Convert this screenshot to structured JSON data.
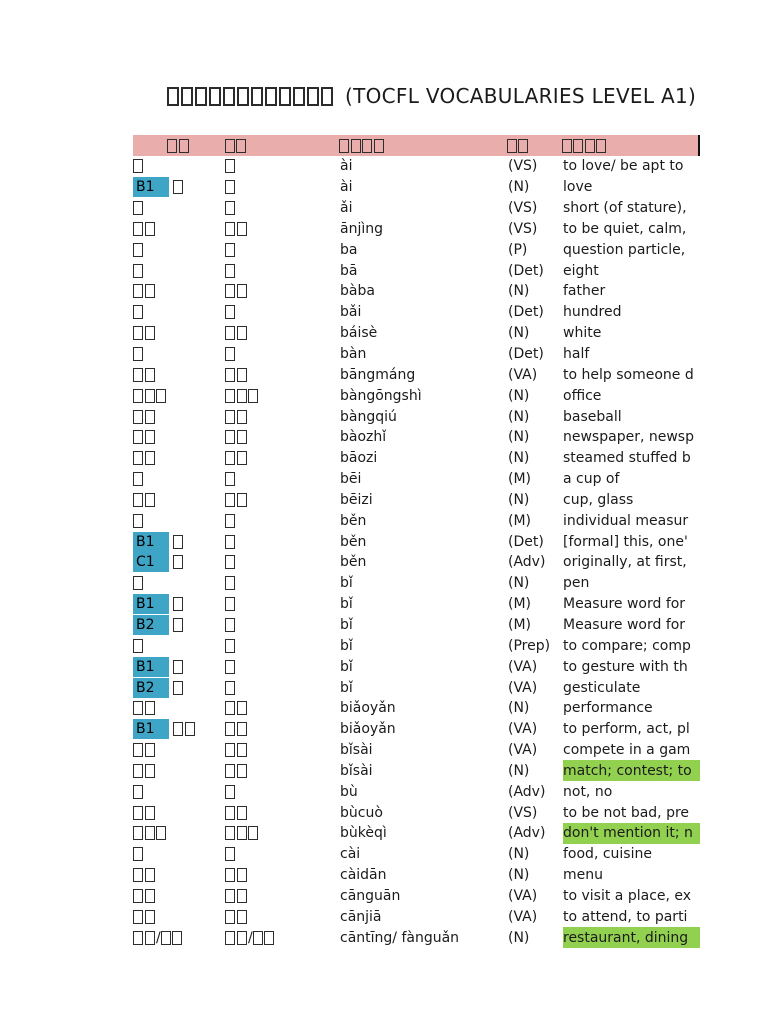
{
  "page": {
    "title_boxes": "############",
    "title_latin": "(TOCFL VOCABULARIES LEVEL A1)"
  },
  "colors": {
    "header_bg": "#E9AEAC",
    "level_badge_bg": "#3EA5C6",
    "highlight_bg": "#92D050"
  },
  "table": {
    "header": {
      "word_boxes": "##",
      "simplified_boxes": "##",
      "pinyin_boxes": "####",
      "pos_boxes": "##",
      "english_boxes": "####"
    },
    "rows": [
      {
        "level": "",
        "word_boxes": "#",
        "simp_boxes": "#",
        "pinyin": "ài",
        "pos": "(VS)",
        "english": "to love/ be apt to",
        "highlight": false
      },
      {
        "level": "B1",
        "word_boxes": "#",
        "simp_boxes": "#",
        "pinyin": "ài",
        "pos": "(N)",
        "english": "love",
        "highlight": false
      },
      {
        "level": "",
        "word_boxes": "#",
        "simp_boxes": "#",
        "pinyin": "ǎi",
        "pos": "(VS)",
        "english": "short (of stature),",
        "highlight": false
      },
      {
        "level": "",
        "word_boxes": "##",
        "simp_boxes": "##",
        "pinyin": "ānjìng",
        "pos": "(VS)",
        "english": "to be quiet, calm,",
        "highlight": false
      },
      {
        "level": "",
        "word_boxes": "#",
        "simp_boxes": "#",
        "pinyin": "ba",
        "pos": "(P)",
        "english": "question particle,",
        "highlight": false
      },
      {
        "level": "",
        "word_boxes": "#",
        "simp_boxes": "#",
        "pinyin": "bā",
        "pos": "(Det)",
        "english": "eight",
        "highlight": false
      },
      {
        "level": "",
        "word_boxes": "##",
        "simp_boxes": "##",
        "pinyin": "bàba",
        "pos": "(N)",
        "english": "father",
        "highlight": false
      },
      {
        "level": "",
        "word_boxes": "#",
        "simp_boxes": "#",
        "pinyin": "bǎi",
        "pos": "(Det)",
        "english": "hundred",
        "highlight": false
      },
      {
        "level": "",
        "word_boxes": "##",
        "simp_boxes": "##",
        "pinyin": "báisè",
        "pos": "(N)",
        "english": "white",
        "highlight": false
      },
      {
        "level": "",
        "word_boxes": "#",
        "simp_boxes": "#",
        "pinyin": "bàn",
        "pos": "(Det)",
        "english": "half",
        "highlight": false
      },
      {
        "level": "",
        "word_boxes": "##",
        "simp_boxes": "##",
        "pinyin": "bāngmáng",
        "pos": "(VA)",
        "english": "to help someone d",
        "highlight": false
      },
      {
        "level": "",
        "word_boxes": "###",
        "simp_boxes": "###",
        "pinyin": "bàngōngshì",
        "pos": "(N)",
        "english": "office",
        "highlight": false
      },
      {
        "level": "",
        "word_boxes": "##",
        "simp_boxes": "##",
        "pinyin": "bàngqiú",
        "pos": "(N)",
        "english": "baseball",
        "highlight": false
      },
      {
        "level": "",
        "word_boxes": "##",
        "simp_boxes": "##",
        "pinyin": "bàozhǐ",
        "pos": "(N)",
        "english": "newspaper, newsp",
        "highlight": false
      },
      {
        "level": "",
        "word_boxes": "##",
        "simp_boxes": "##",
        "pinyin": "bāozi",
        "pos": "(N)",
        "english": "steamed stuffed b",
        "highlight": false
      },
      {
        "level": "",
        "word_boxes": "#",
        "simp_boxes": "#",
        "pinyin": "bēi",
        "pos": "(M)",
        "english": "a cup of",
        "highlight": false
      },
      {
        "level": "",
        "word_boxes": "##",
        "simp_boxes": "##",
        "pinyin": "bēizi",
        "pos": "(N)",
        "english": "cup, glass",
        "highlight": false
      },
      {
        "level": "",
        "word_boxes": "#",
        "simp_boxes": "#",
        "pinyin": "běn",
        "pos": "(M)",
        "english": "individual measur",
        "highlight": false
      },
      {
        "level": "B1",
        "word_boxes": "#",
        "simp_boxes": "#",
        "pinyin": "běn",
        "pos": "(Det)",
        "english": "[formal] this, one'",
        "highlight": false
      },
      {
        "level": "C1",
        "word_boxes": "#",
        "simp_boxes": "#",
        "pinyin": "běn",
        "pos": "(Adv)",
        "english": "originally, at first,",
        "highlight": false
      },
      {
        "level": "",
        "word_boxes": "#",
        "simp_boxes": "#",
        "pinyin": "bǐ",
        "pos": "(N)",
        "english": "pen",
        "highlight": false
      },
      {
        "level": "B1",
        "word_boxes": "#",
        "simp_boxes": "#",
        "pinyin": "bǐ",
        "pos": "(M)",
        "english": "Measure word for",
        "highlight": false
      },
      {
        "level": "B2",
        "word_boxes": "#",
        "simp_boxes": "#",
        "pinyin": "bǐ",
        "pos": "(M)",
        "english": "Measure word for",
        "highlight": false
      },
      {
        "level": "",
        "word_boxes": "#",
        "simp_boxes": "#",
        "pinyin": "bǐ",
        "pos": "(Prep)",
        "english": "to compare; comp",
        "highlight": false
      },
      {
        "level": "B1",
        "word_boxes": "#",
        "simp_boxes": "#",
        "pinyin": "bǐ",
        "pos": "(VA)",
        "english": "to gesture with th",
        "highlight": false
      },
      {
        "level": "B2",
        "word_boxes": "#",
        "simp_boxes": "#",
        "pinyin": "bǐ",
        "pos": "(VA)",
        "english": "gesticulate",
        "highlight": false
      },
      {
        "level": "",
        "word_boxes": "##",
        "simp_boxes": "##",
        "pinyin": "biǎoyǎn",
        "pos": "(N)",
        "english": "performance",
        "highlight": false
      },
      {
        "level": "B1",
        "word_boxes": "##",
        "simp_boxes": "##",
        "pinyin": "biǎoyǎn",
        "pos": "(VA)",
        "english": "to perform, act, pl",
        "highlight": false
      },
      {
        "level": "",
        "word_boxes": "##",
        "simp_boxes": "##",
        "pinyin": "bǐsài",
        "pos": "(VA)",
        "english": "compete in a gam",
        "highlight": false
      },
      {
        "level": "",
        "word_boxes": "##",
        "simp_boxes": "##",
        "pinyin": "bǐsài",
        "pos": "(N)",
        "english": "match; contest; to",
        "highlight": true
      },
      {
        "level": "",
        "word_boxes": "#",
        "simp_boxes": "#",
        "pinyin": "bù",
        "pos": "(Adv)",
        "english": "not, no",
        "highlight": false
      },
      {
        "level": "",
        "word_boxes": "##",
        "simp_boxes": "##",
        "pinyin": "bùcuò",
        "pos": "(VS)",
        "english": "to be not bad, pre",
        "highlight": false
      },
      {
        "level": "",
        "word_boxes": "###",
        "simp_boxes": "###",
        "pinyin": "bùkèqì",
        "pos": "(Adv)",
        "english": "don't mention it; n",
        "highlight": true
      },
      {
        "level": "",
        "word_boxes": "#",
        "simp_boxes": "#",
        "pinyin": "cài",
        "pos": "(N)",
        "english": "food, cuisine",
        "highlight": false
      },
      {
        "level": "",
        "word_boxes": "##",
        "simp_boxes": "##",
        "pinyin": "càidān",
        "pos": "(N)",
        "english": "menu",
        "highlight": false
      },
      {
        "level": "",
        "word_boxes": "##",
        "simp_boxes": "##",
        "pinyin": "cānguān",
        "pos": "(VA)",
        "english": "to visit a place, ex",
        "highlight": false
      },
      {
        "level": "",
        "word_boxes": "##",
        "simp_boxes": "##",
        "pinyin": "cānjiā",
        "pos": "(VA)",
        "english": "to attend, to parti",
        "highlight": false
      },
      {
        "level": "",
        "word_boxes": "##/##",
        "simp_boxes": "##/##",
        "pinyin": "cāntīng/ fànguǎn",
        "pos": "(N)",
        "english": "restaurant, dining",
        "highlight": true
      }
    ]
  }
}
